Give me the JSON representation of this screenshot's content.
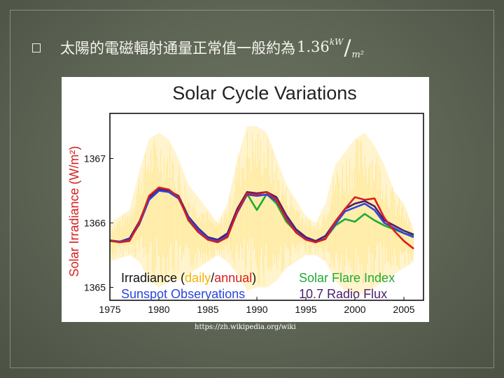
{
  "heading": {
    "bullet_icon": "square-bullet-icon",
    "text": "太陽的電磁輻射通量正常值一般約為",
    "value": "1.36",
    "unit_numerator": "kW",
    "unit_denominator": "m²"
  },
  "source": "https://zh.wikipedia.org/wiki",
  "chart_data": {
    "type": "line",
    "title": "Solar Cycle Variations",
    "ylabel": "Solar Irradiance (W/m²)",
    "xlabel": "",
    "xlim": [
      1975,
      2007
    ],
    "ylim": [
      1364.8,
      1367.7
    ],
    "x_ticks": [
      1975,
      1980,
      1985,
      1990,
      1995,
      2000,
      2005
    ],
    "y_ticks": [
      1365,
      1366,
      1367
    ],
    "legend": {
      "irradiance_prefix": "Irradiance (",
      "daily": "daily",
      "separator": "/",
      "annual": "annual",
      "irradiance_suffix": ")",
      "sunspot": "Sunspot Observations",
      "flare": "Solar Flare Index",
      "radio": "10.7 Radio Flux"
    },
    "colors": {
      "daily": "#ffd84a",
      "annual": "#d81e1e",
      "sunspot": "#2b45e0",
      "flare": "#22aa33",
      "radio": "#4a1f6e",
      "ylabel": "#d81e1e",
      "title": "#222222"
    },
    "daily_band": {
      "x": [
        1975,
        1977,
        1978,
        1979,
        1980,
        1981,
        1982,
        1983,
        1985,
        1986,
        1987,
        1988,
        1989,
        1990,
        1991,
        1992,
        1993,
        1995,
        1996,
        1997,
        1998,
        1999,
        2000,
        2001,
        2002,
        2003,
        2004,
        2005,
        2006
      ],
      "high": [
        1366.0,
        1366.2,
        1366.8,
        1367.3,
        1367.4,
        1367.3,
        1367.0,
        1366.6,
        1366.2,
        1366.0,
        1366.3,
        1367.0,
        1367.5,
        1367.5,
        1367.4,
        1367.0,
        1366.6,
        1366.1,
        1366.0,
        1366.3,
        1366.9,
        1367.1,
        1367.3,
        1367.4,
        1367.2,
        1366.9,
        1366.5,
        1366.3,
        1365.9
      ],
      "low": [
        1365.4,
        1365.5,
        1365.4,
        1365.1,
        1365.0,
        1365.1,
        1365.1,
        1365.2,
        1365.4,
        1365.5,
        1365.4,
        1365.2,
        1364.95,
        1365.0,
        1365.0,
        1365.1,
        1365.3,
        1365.5,
        1365.5,
        1365.4,
        1365.1,
        1364.95,
        1364.9,
        1364.9,
        1365.0,
        1365.1,
        1365.2,
        1365.3,
        1365.4
      ]
    },
    "series": [
      {
        "name": "Solar Flare Index",
        "color": "#22aa33",
        "x": [
          1975,
          1976,
          1977,
          1978,
          1979,
          1980,
          1981,
          1982,
          1983,
          1984,
          1985,
          1986,
          1987,
          1988,
          1989,
          1990,
          1991,
          1992,
          1993,
          1994,
          1995,
          1996,
          1997,
          1998,
          1999,
          2000,
          2001,
          2002,
          2003,
          2004,
          2005,
          2006
        ],
        "y": [
          1365.72,
          1365.7,
          1365.74,
          1366.0,
          1366.38,
          1366.52,
          1366.48,
          1366.42,
          1366.04,
          1365.86,
          1365.74,
          1365.72,
          1365.82,
          1366.2,
          1366.45,
          1366.2,
          1366.45,
          1366.3,
          1366.02,
          1365.86,
          1365.76,
          1365.7,
          1365.76,
          1365.96,
          1366.06,
          1366.02,
          1366.14,
          1366.04,
          1365.96,
          1365.9,
          1365.84,
          1365.8
        ]
      },
      {
        "name": "10.7 Radio Flux",
        "color": "#4a1f6e",
        "x": [
          1975,
          1976,
          1977,
          1978,
          1979,
          1980,
          1981,
          1982,
          1983,
          1984,
          1985,
          1986,
          1987,
          1988,
          1989,
          1990,
          1991,
          1992,
          1993,
          1994,
          1995,
          1996,
          1997,
          1998,
          1999,
          2000,
          2001,
          2002,
          2003,
          2004,
          2005,
          2006
        ],
        "y": [
          1365.73,
          1365.71,
          1365.76,
          1366.02,
          1366.4,
          1366.52,
          1366.5,
          1366.42,
          1366.1,
          1365.92,
          1365.78,
          1365.74,
          1365.84,
          1366.22,
          1366.48,
          1366.46,
          1366.48,
          1366.4,
          1366.12,
          1365.9,
          1365.78,
          1365.72,
          1365.8,
          1366.02,
          1366.22,
          1366.3,
          1366.34,
          1366.26,
          1366.04,
          1365.96,
          1365.88,
          1365.82
        ]
      },
      {
        "name": "Sunspot Observations",
        "color": "#2b45e0",
        "x": [
          1975,
          1976,
          1977,
          1978,
          1979,
          1980,
          1981,
          1982,
          1983,
          1984,
          1985,
          1986,
          1987,
          1988,
          1989,
          1990,
          1991,
          1992,
          1993,
          1994,
          1995,
          1996,
          1997,
          1998,
          1999,
          2000,
          2001,
          2002,
          2003,
          2004,
          2005,
          2006
        ],
        "y": [
          1365.73,
          1365.71,
          1365.74,
          1365.98,
          1366.36,
          1366.5,
          1366.48,
          1366.38,
          1366.08,
          1365.9,
          1365.76,
          1365.72,
          1365.8,
          1366.16,
          1366.44,
          1366.42,
          1366.44,
          1366.34,
          1366.08,
          1365.86,
          1365.75,
          1365.7,
          1365.76,
          1365.98,
          1366.18,
          1366.24,
          1366.3,
          1366.2,
          1366.0,
          1365.92,
          1365.84,
          1365.78
        ]
      },
      {
        "name": "Irradiance (annual)",
        "color": "#d81e1e",
        "x": [
          1975,
          1976,
          1977,
          1978,
          1979,
          1980,
          1981,
          1982,
          1983,
          1984,
          1985,
          1986,
          1987,
          1988,
          1989,
          1990,
          1991,
          1992,
          1993,
          1994,
          1995,
          1996,
          1997,
          1998,
          1999,
          2000,
          2001,
          2002,
          2003,
          2004,
          2005,
          2006
        ],
        "y": [
          1365.73,
          1365.7,
          1365.72,
          1366.0,
          1366.42,
          1366.55,
          1366.52,
          1366.4,
          1366.05,
          1365.86,
          1365.74,
          1365.7,
          1365.78,
          1366.18,
          1366.46,
          1366.44,
          1366.48,
          1366.36,
          1366.06,
          1365.85,
          1365.74,
          1365.7,
          1365.75,
          1366.02,
          1366.22,
          1366.4,
          1366.36,
          1366.38,
          1366.08,
          1365.88,
          1365.72,
          1365.6
        ]
      }
    ]
  }
}
